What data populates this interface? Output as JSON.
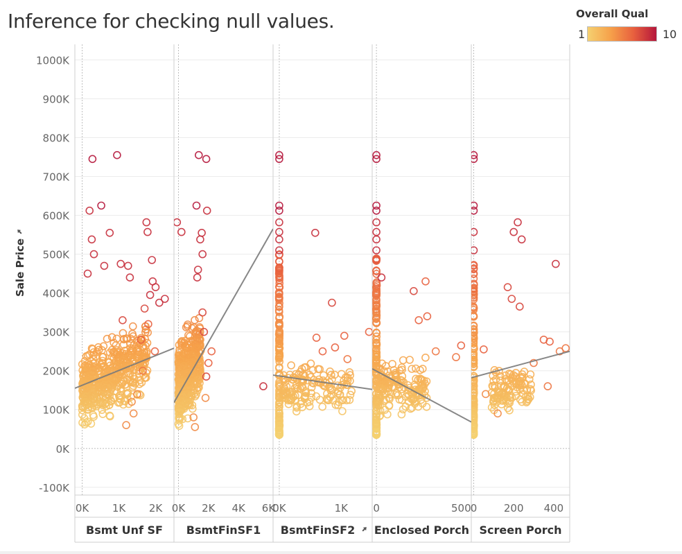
{
  "chart_data": {
    "type": "scatter",
    "title": "Inference for checking null values.",
    "ylabel": "Sale Price",
    "ylim": [
      -120000,
      1040000
    ],
    "yticks": [
      {
        "value": 1000000,
        "label": "1000K"
      },
      {
        "value": 900000,
        "label": "900K"
      },
      {
        "value": 800000,
        "label": "800K"
      },
      {
        "value": 700000,
        "label": "700K"
      },
      {
        "value": 600000,
        "label": "600K"
      },
      {
        "value": 500000,
        "label": "500K"
      },
      {
        "value": 400000,
        "label": "400K"
      },
      {
        "value": 300000,
        "label": "300K"
      },
      {
        "value": 200000,
        "label": "200K"
      },
      {
        "value": 100000,
        "label": "100K"
      },
      {
        "value": 0,
        "label": "0K"
      },
      {
        "value": -100000,
        "label": "-100K"
      }
    ],
    "grid": true,
    "color": {
      "field": "Overall Qual",
      "min": 1,
      "max": 10,
      "min_label": "1",
      "max_label": "10",
      "colors": [
        "#f5d070",
        "#f6a14a",
        "#e8603e",
        "#b5163b"
      ]
    },
    "legend": {
      "title": "Overall Qual",
      "placement": "top-right"
    },
    "panels": [
      {
        "name": "Bsmt Unf SF",
        "pinned": false,
        "xlim": [
          -200,
          2500
        ],
        "xticks": [
          {
            "value": 0,
            "label": "0K"
          },
          {
            "value": 1000,
            "label": "1K"
          },
          {
            "value": 2000,
            "label": "2K"
          }
        ],
        "trend": [
          [
            -200,
            155000
          ],
          [
            2500,
            258000
          ]
        ],
        "cloud": {
          "x0": 0,
          "x1": 1800,
          "y0": 40000,
          "y1": 390000,
          "count": 520
        },
        "points": [
          [
            280,
            745000,
            10
          ],
          [
            950,
            755000,
            10
          ],
          [
            200,
            612000,
            9
          ],
          [
            520,
            625000,
            10
          ],
          [
            750,
            555000,
            9
          ],
          [
            1750,
            582000,
            9
          ],
          [
            1780,
            557000,
            9
          ],
          [
            260,
            538000,
            9
          ],
          [
            1050,
            475000,
            9
          ],
          [
            320,
            500000,
            9
          ],
          [
            1250,
            470000,
            9
          ],
          [
            1900,
            485000,
            9
          ],
          [
            1920,
            430000,
            9
          ],
          [
            1850,
            395000,
            9
          ],
          [
            2000,
            415000,
            9
          ],
          [
            2250,
            385000,
            9
          ],
          [
            2100,
            375000,
            9
          ],
          [
            1700,
            360000,
            8
          ],
          [
            1800,
            320000,
            7
          ],
          [
            1980,
            250000,
            7
          ],
          [
            1650,
            200000,
            6
          ],
          [
            1500,
            140000,
            5
          ],
          [
            1400,
            90000,
            5
          ],
          [
            1200,
            60000,
            5
          ],
          [
            600,
            470000,
            9
          ],
          [
            150,
            450000,
            9
          ],
          [
            1300,
            440000,
            9
          ],
          [
            1100,
            330000,
            8
          ],
          [
            1600,
            280000,
            7
          ],
          [
            1350,
            120000,
            5
          ]
        ]
      },
      {
        "name": "BsmtFinSF1",
        "pinned": false,
        "xlim": [
          -300,
          6300
        ],
        "xticks": [
          {
            "value": 0,
            "label": "0K"
          },
          {
            "value": 2000,
            "label": "2K"
          },
          {
            "value": 4000,
            "label": "4K"
          },
          {
            "value": 6000,
            "label": "6K"
          }
        ],
        "trend": [
          [
            -300,
            118000
          ],
          [
            6300,
            565000
          ]
        ],
        "cloud": {
          "x0": 0,
          "x1": 1500,
          "y0": 35000,
          "y1": 470000,
          "count": 420
        },
        "points": [
          [
            1350,
            755000,
            10
          ],
          [
            1850,
            745000,
            10
          ],
          [
            1200,
            625000,
            10
          ],
          [
            1900,
            612000,
            9
          ],
          [
            -100,
            582000,
            9
          ],
          [
            200,
            557000,
            9
          ],
          [
            1550,
            555000,
            9
          ],
          [
            1450,
            538000,
            9
          ],
          [
            1600,
            500000,
            9
          ],
          [
            5650,
            160000,
            9
          ],
          [
            1850,
            185000,
            8
          ],
          [
            2000,
            220000,
            7
          ],
          [
            2200,
            250000,
            7
          ],
          [
            1700,
            300000,
            8
          ],
          [
            1600,
            350000,
            8
          ],
          [
            1300,
            460000,
            9
          ],
          [
            1250,
            440000,
            9
          ],
          [
            1800,
            130000,
            5
          ],
          [
            1000,
            80000,
            5
          ],
          [
            1100,
            55000,
            5
          ]
        ]
      },
      {
        "name": "BsmtFinSF2",
        "pinned": true,
        "xlim": [
          -100,
          1500
        ],
        "xticks": [
          {
            "value": 0,
            "label": "0K"
          },
          {
            "value": 1000,
            "label": "1K"
          }
        ],
        "trend": [
          [
            -500,
            198000
          ],
          [
            1500,
            152000
          ]
        ],
        "column": {
          "x": 0,
          "y0": 35000,
          "y1": 500000,
          "count": 150
        },
        "extra_column": [
          [
            0,
            755000,
            10
          ],
          [
            0,
            745000,
            10
          ],
          [
            0,
            625000,
            10
          ],
          [
            0,
            612000,
            10
          ],
          [
            0,
            582000,
            9
          ],
          [
            0,
            557000,
            9
          ],
          [
            0,
            538000,
            9
          ],
          [
            0,
            510000,
            9
          ]
        ],
        "cloud": {
          "x0": 50,
          "x1": 1200,
          "y0": 50000,
          "y1": 300000,
          "count": 150
        },
        "points": [
          [
            580,
            555000,
            9
          ],
          [
            850,
            375000,
            8
          ],
          [
            1450,
            300000,
            7
          ],
          [
            1050,
            290000,
            7
          ],
          [
            900,
            260000,
            7
          ],
          [
            600,
            285000,
            7
          ],
          [
            700,
            250000,
            7
          ],
          [
            1100,
            230000,
            6
          ]
        ]
      },
      {
        "name": "Enclosed Porch",
        "pinned": false,
        "xlim": [
          -25,
          560
        ],
        "xticks": [
          {
            "value": 0,
            "label": "0"
          },
          {
            "value": 500,
            "label": "500"
          }
        ],
        "trend": [
          [
            -25,
            205000
          ],
          [
            560,
            68000
          ]
        ],
        "column": {
          "x": 0,
          "y0": 35000,
          "y1": 500000,
          "count": 150
        },
        "extra_column": [
          [
            0,
            755000,
            10
          ],
          [
            0,
            745000,
            10
          ],
          [
            0,
            625000,
            10
          ],
          [
            0,
            612000,
            10
          ],
          [
            0,
            582000,
            9
          ],
          [
            0,
            557000,
            9
          ],
          [
            0,
            538000,
            9
          ],
          [
            0,
            510000,
            9
          ]
        ],
        "cloud": {
          "x0": 10,
          "x1": 300,
          "y0": 40000,
          "y1": 300000,
          "count": 170
        },
        "points": [
          [
            30,
            440000,
            9
          ],
          [
            220,
            405000,
            8
          ],
          [
            290,
            430000,
            7
          ],
          [
            470,
            235000,
            6
          ],
          [
            500,
            265000,
            7
          ],
          [
            350,
            250000,
            6
          ],
          [
            300,
            340000,
            7
          ],
          [
            250,
            330000,
            7
          ]
        ]
      },
      {
        "name": "Screen Porch",
        "pinned": false,
        "xlim": [
          -12,
          480
        ],
        "xticks": [
          {
            "value": 0,
            "label": "0"
          },
          {
            "value": 200,
            "label": "200"
          },
          {
            "value": 400,
            "label": "400"
          }
        ],
        "trend": [
          [
            -12,
            182000
          ],
          [
            480,
            250000
          ]
        ],
        "column": {
          "x": 0,
          "y0": 35000,
          "y1": 480000,
          "count": 150
        },
        "extra_column": [
          [
            0,
            755000,
            10
          ],
          [
            0,
            745000,
            10
          ],
          [
            0,
            625000,
            10
          ],
          [
            0,
            612000,
            10
          ],
          [
            0,
            557000,
            9
          ],
          [
            0,
            510000,
            9
          ]
        ],
        "cloud": {
          "x0": 90,
          "x1": 290,
          "y0": 90000,
          "y1": 300000,
          "count": 110
        },
        "points": [
          [
            220,
            582000,
            9
          ],
          [
            200,
            557000,
            9
          ],
          [
            240,
            538000,
            9
          ],
          [
            410,
            475000,
            9
          ],
          [
            170,
            415000,
            8
          ],
          [
            230,
            365000,
            8
          ],
          [
            190,
            385000,
            8
          ],
          [
            350,
            280000,
            7
          ],
          [
            380,
            275000,
            7
          ],
          [
            430,
            250000,
            6
          ],
          [
            460,
            258000,
            6
          ],
          [
            370,
            160000,
            6
          ],
          [
            50,
            255000,
            7
          ],
          [
            300,
            220000,
            6
          ],
          [
            120,
            90000,
            5
          ],
          [
            60,
            140000,
            5
          ]
        ]
      }
    ]
  }
}
